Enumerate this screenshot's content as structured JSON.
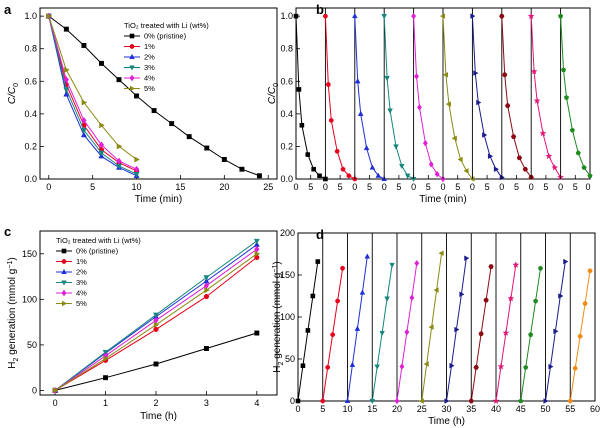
{
  "panels": [
    {
      "panel_label": "a",
      "chart_data": {
        "type": "line",
        "xlabel": "Time (min)",
        "ylabel_main": "C/C",
        "ylabel_sub": "0",
        "xlim": [
          -1,
          26
        ],
        "ylim": [
          0,
          1.05
        ],
        "xticks": [
          0,
          5,
          10,
          15,
          20,
          25
        ],
        "yticks": [
          0,
          0.2,
          0.4,
          0.6,
          0.8,
          1.0
        ],
        "ytick_labels": [
          "0.0",
          "0.2",
          "0.4",
          "0.6",
          "0.8",
          "1.0"
        ],
        "legend_title": "TiO₂ treated with Li (wt%)",
        "series": [
          {
            "name": "0% (pristine)",
            "color": "#000000",
            "marker": "square",
            "x": [
              0,
              2,
              4,
              6,
              8,
              10,
              12,
              14,
              16,
              18,
              20,
              22,
              24
            ],
            "y": [
              1.0,
              0.92,
              0.82,
              0.71,
              0.61,
              0.51,
              0.42,
              0.34,
              0.26,
              0.19,
              0.12,
              0.06,
              0.02
            ]
          },
          {
            "name": "1%",
            "color": "#e8001c",
            "marker": "circle",
            "x": [
              0,
              2,
              4,
              6,
              8,
              10
            ],
            "y": [
              1.0,
              0.58,
              0.33,
              0.18,
              0.1,
              0.05
            ]
          },
          {
            "name": "2%",
            "color": "#1f2fd6",
            "marker": "triangle-up",
            "x": [
              0,
              2,
              4,
              6,
              8,
              10
            ],
            "y": [
              1.0,
              0.52,
              0.27,
              0.14,
              0.07,
              0.02
            ]
          },
          {
            "name": "3%",
            "color": "#16877e",
            "marker": "triangle-down",
            "x": [
              0,
              2,
              4,
              6,
              8,
              10
            ],
            "y": [
              1.0,
              0.55,
              0.3,
              0.16,
              0.08,
              0.03
            ]
          },
          {
            "name": "4%",
            "color": "#e11fd6",
            "marker": "diamond",
            "x": [
              0,
              2,
              4,
              6,
              8,
              10
            ],
            "y": [
              1.0,
              0.61,
              0.36,
              0.21,
              0.11,
              0.06
            ]
          },
          {
            "name": "5%",
            "color": "#8b8a12",
            "marker": "triangle-right",
            "x": [
              0,
              2,
              4,
              6,
              8,
              10
            ],
            "y": [
              1.0,
              0.67,
              0.47,
              0.33,
              0.2,
              0.12
            ]
          }
        ]
      }
    },
    {
      "panel_label": "b",
      "chart_data": {
        "type": "line",
        "xlabel": "Time (min)",
        "ylabel_main": "C/C",
        "ylabel_sub": "0",
        "cycles": 10,
        "cycle_length": 10,
        "ylim": [
          0,
          1.05
        ],
        "yticks": [
          0,
          0.2,
          0.4,
          0.6,
          0.8,
          1.0
        ],
        "ytick_labels": [
          "0.0",
          "0.2",
          "0.4",
          "0.6",
          "0.8",
          "1.0"
        ],
        "cycle_tick_labels": [
          "0",
          "5"
        ],
        "final_tick_label": "0",
        "cycle_x": [
          0,
          1,
          2,
          4,
          6,
          8,
          10
        ],
        "cycle_colors": [
          "#000000",
          "#e8001c",
          "#1f2fd6",
          "#16877e",
          "#e11fd6",
          "#8b8a12",
          "#1a1a8c",
          "#8b0a14",
          "#e3157a",
          "#1e8a1e"
        ],
        "cycle_markers": [
          "square",
          "circle",
          "triangle-up",
          "triangle-down",
          "diamond",
          "triangle-left",
          "triangle-right",
          "hexagon",
          "star",
          "pentagon"
        ],
        "cycles_y": [
          [
            1.0,
            0.55,
            0.33,
            0.15,
            0.06,
            0.02,
            0.0
          ],
          [
            1.0,
            0.58,
            0.36,
            0.17,
            0.06,
            0.02,
            0.0
          ],
          [
            1.0,
            0.6,
            0.4,
            0.19,
            0.07,
            0.02,
            0.0
          ],
          [
            1.0,
            0.62,
            0.42,
            0.2,
            0.08,
            0.02,
            0.0
          ],
          [
            1.0,
            0.63,
            0.44,
            0.22,
            0.09,
            0.03,
            0.0
          ],
          [
            1.0,
            0.64,
            0.46,
            0.25,
            0.12,
            0.05,
            0.0
          ],
          [
            1.0,
            0.65,
            0.47,
            0.27,
            0.14,
            0.06,
            0.01
          ],
          [
            1.0,
            0.64,
            0.45,
            0.26,
            0.13,
            0.06,
            0.01
          ],
          [
            1.0,
            0.66,
            0.48,
            0.28,
            0.14,
            0.07,
            0.01
          ],
          [
            1.0,
            0.67,
            0.5,
            0.3,
            0.16,
            0.07,
            0.02
          ]
        ]
      }
    },
    {
      "panel_label": "c",
      "chart_data": {
        "type": "line",
        "xlabel": "Time (h)",
        "ylabel_main": "H",
        "ylabel_sub": "2",
        "ylabel_rest": " generation (mmol g",
        "ylabel_sup": "−1",
        "ylabel_end": ")",
        "xlim": [
          -0.3,
          4.4
        ],
        "ylim": [
          -5,
          175
        ],
        "xticks": [
          0,
          1,
          2,
          3,
          4
        ],
        "yticks": [
          0,
          50,
          100,
          150
        ],
        "legend_title": "TiO₂ treated with Li (wt%)",
        "series": [
          {
            "name": "0% (pristine)",
            "color": "#000000",
            "marker": "square",
            "x": [
              0,
              1,
              2,
              3,
              4
            ],
            "y": [
              0,
              14,
              29,
              46,
              63
            ]
          },
          {
            "name": "1%",
            "color": "#e8001c",
            "marker": "circle",
            "x": [
              0,
              1,
              2,
              3,
              4
            ],
            "y": [
              0,
              33,
              67,
              103,
              146
            ]
          },
          {
            "name": "2%",
            "color": "#1f2fd6",
            "marker": "triangle-up",
            "x": [
              0,
              1,
              2,
              3,
              4
            ],
            "y": [
              0,
              41,
              81,
              120,
              160
            ]
          },
          {
            "name": "3%",
            "color": "#16877e",
            "marker": "triangle-down",
            "x": [
              0,
              1,
              2,
              3,
              4
            ],
            "y": [
              0,
              42,
              83,
              124,
              164
            ]
          },
          {
            "name": "4%",
            "color": "#e11fd6",
            "marker": "diamond",
            "x": [
              0,
              1,
              2,
              3,
              4
            ],
            "y": [
              0,
              38,
              77,
              115,
              155
            ]
          },
          {
            "name": "5%",
            "color": "#8b8a12",
            "marker": "triangle-right",
            "x": [
              0,
              1,
              2,
              3,
              4
            ],
            "y": [
              0,
              35,
              72,
              110,
              150
            ]
          }
        ]
      }
    },
    {
      "panel_label": "d",
      "chart_data": {
        "type": "line",
        "xlabel": "Time (h)",
        "ylabel_main": "H",
        "ylabel_sub": "2",
        "ylabel_rest": " generation (mmol g",
        "ylabel_sup": "−1",
        "ylabel_end": ")",
        "xlim": [
          0,
          60
        ],
        "ylim": [
          0,
          200
        ],
        "xticks": [
          0,
          5,
          10,
          15,
          20,
          25,
          30,
          35,
          40,
          45,
          50,
          55,
          60
        ],
        "yticks": [
          0,
          50,
          100,
          150,
          200
        ],
        "cycle_starts": [
          0,
          5,
          10,
          15,
          20,
          25,
          30,
          35,
          40,
          45,
          50,
          55
        ],
        "cycle_x_offsets": [
          0,
          1,
          2,
          3,
          4
        ],
        "cycle_colors": [
          "#000000",
          "#e8001c",
          "#1f2fd6",
          "#16877e",
          "#e11fd6",
          "#8b8a12",
          "#1a1a8c",
          "#8b0a14",
          "#e3157a",
          "#1e8a1e",
          "#1a1a8c",
          "#f08c14"
        ],
        "cycle_markers": [
          "square",
          "circle",
          "triangle-up",
          "triangle-down",
          "diamond",
          "triangle-left",
          "triangle-right",
          "hexagon",
          "star",
          "pentagon",
          "triangle-right",
          "circle"
        ],
        "cycles_y": [
          [
            0,
            42,
            84,
            125,
            166
          ],
          [
            0,
            40,
            79,
            119,
            158
          ],
          [
            0,
            43,
            86,
            129,
            172
          ],
          [
            0,
            41,
            81,
            122,
            162
          ],
          [
            0,
            41,
            82,
            123,
            164
          ],
          [
            0,
            44,
            88,
            132,
            176
          ],
          [
            0,
            42,
            85,
            127,
            170
          ],
          [
            0,
            40,
            80,
            120,
            160
          ],
          [
            0,
            41,
            81,
            122,
            162
          ],
          [
            0,
            40,
            79,
            119,
            158
          ],
          [
            0,
            41,
            83,
            125,
            166
          ],
          [
            0,
            39,
            77,
            116,
            155
          ]
        ]
      }
    }
  ]
}
